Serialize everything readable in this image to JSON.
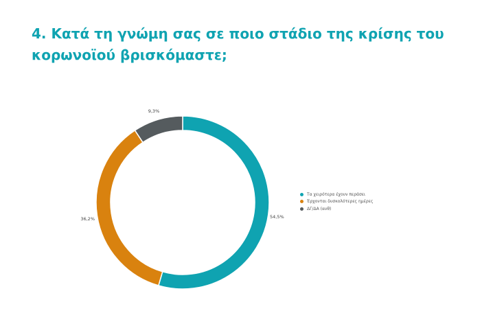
{
  "page": {
    "title": "4. Κατά τη γνώμη σας σε ποιο στάδιο της κρίσης του κορωνοϊού βρισκόμαστε;"
  },
  "chart_data": {
    "type": "pie",
    "donut": true,
    "title": "",
    "slices": [
      {
        "label": "Τα χειρότερα έχουν περάσει",
        "value": 54.5,
        "value_label": "54,5%",
        "color": "#0fa3b1"
      },
      {
        "label": "Έρχονται δυσκολότερες ημέρες",
        "value": 36.2,
        "value_label": "36,2%",
        "color": "#d9820f"
      },
      {
        "label": "ΔΓ/ΔΑ (αυθ)",
        "value": 9.3,
        "value_label": "9,3%",
        "color": "#555b5e"
      }
    ],
    "legend_position": "right"
  }
}
